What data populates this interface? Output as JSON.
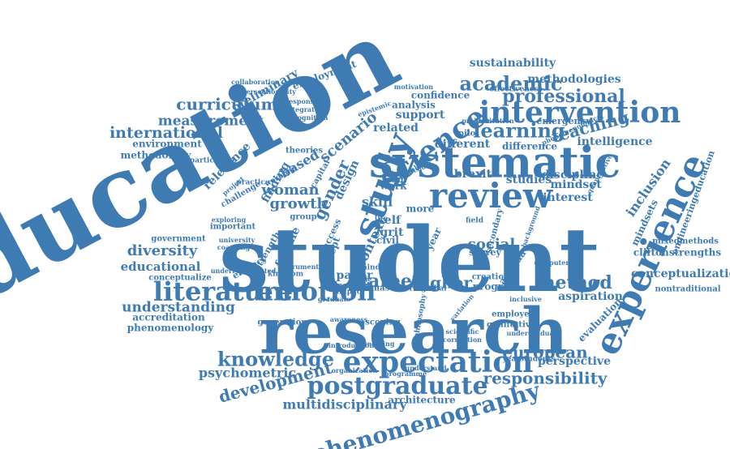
{
  "word_cloud": {
    "color": "#3f7bb3",
    "words": [
      "education",
      "student",
      "research",
      "systematic",
      "review",
      "study",
      "experience",
      "intervention",
      "expectation",
      "postgraduate",
      "phenomenography",
      "literature",
      "emotion",
      "science",
      "career",
      "academic",
      "professional",
      "learning",
      "teaching",
      "knowledge",
      "development",
      "responsibility",
      "european",
      "curriculum",
      "measurement",
      "international",
      "sustainability",
      "methodologies",
      "employment",
      "preliminary",
      "woman",
      "growth",
      "gender",
      "scenario",
      "based",
      "skill",
      "method",
      "higher",
      "inclusion",
      "mindset",
      "mindsets",
      "engineeringeducation",
      "understanding",
      "psychometric",
      "multidisciplinary",
      "architecture",
      "diversity",
      "educational",
      "accreditation",
      "phenomenology",
      "conceptualization",
      "cliftonstrengths",
      "mixedmethods",
      "nontraditional",
      "aspiration",
      "evaluation",
      "perspective",
      "intelligence",
      "different",
      "difference",
      "studies",
      "discipline",
      "interest",
      "emergency",
      "confidence",
      "support",
      "analysis",
      "related",
      "environment",
      "methodology",
      "relevance",
      "participant",
      "conceptualize",
      "government",
      "effectiveness",
      "context",
      "social",
      "paper",
      "report",
      "design",
      "female",
      "efficacy",
      "strength",
      "progress",
      "survey",
      "agenda",
      "civil",
      "self",
      "grit",
      "master",
      "interview",
      "global",
      "creation",
      "employer",
      "qualitative",
      "scoping",
      "generation",
      "yearstudents",
      "organization",
      "programme",
      "understand",
      "introduction",
      "developing",
      "scientific",
      "corruption",
      "variation",
      "philosophy",
      "finding",
      "theories",
      "challenge",
      "practice",
      "kingdom",
      "important",
      "exploring",
      "concept",
      "success",
      "work",
      "team",
      "more",
      "group",
      "year",
      "brexit",
      "pilot",
      "field",
      "mind",
      "ethic",
      "impact",
      "integrated",
      "responsible",
      "cognition",
      "epistemic",
      "capital",
      "working",
      "school",
      "result",
      "instrument",
      "institution",
      "problem",
      "phenomenological",
      "motivation",
      "life",
      "quantitative",
      "secondary",
      "background",
      "university",
      "coaching",
      "project",
      "awareness",
      "collaboration",
      "inclusive",
      "computer",
      "undergraduate",
      "graduate",
      "intersectionality",
      "underrepresented"
    ]
  }
}
